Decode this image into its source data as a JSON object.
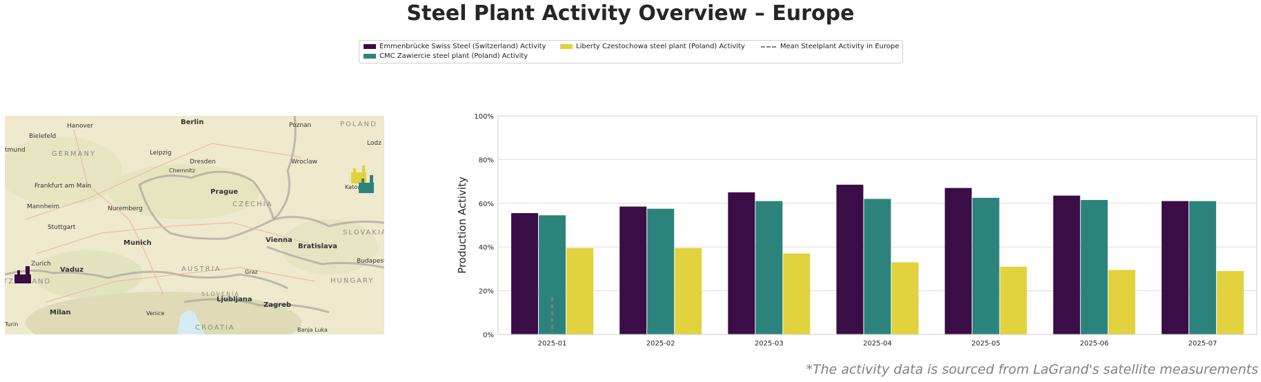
{
  "title": "Steel Plant Activity Overview – Europe",
  "footnote": "*The activity data is sourced from LaGrand's satellite measurements",
  "legend": {
    "items": [
      {
        "label": "Emmenbrücke Swiss Steel (Switzerland) Activity",
        "color": "#3b0d47"
      },
      {
        "label": "CMC Zawiercie steel plant (Poland) Activity",
        "color": "#2c837c"
      },
      {
        "label": "Liberty Czestochowa steel plant (Poland) Activity",
        "color": "#e1d23e"
      },
      {
        "label": "Mean Steelplant Activity in Europe",
        "color": "#7f7f7f"
      }
    ]
  },
  "map": {
    "cities": [
      "Berlin",
      "Poznan",
      "Hanover",
      "Bielefeld",
      "Dortmund",
      "Leipzig",
      "Dresden",
      "Wroclaw",
      "Lodz",
      "Chemnitz",
      "Frankfurt am Main",
      "Prague",
      "Katowice",
      "Mannheim",
      "Nuremberg",
      "Stuttgart",
      "Munich",
      "Vienna",
      "Bratislava",
      "Zurich",
      "Vaduz",
      "Graz",
      "Budapest",
      "Ljubljana",
      "Zagreb",
      "Milan",
      "Venice",
      "Turin",
      "Banja Luka"
    ],
    "countries": [
      "GERMANY",
      "POLAND",
      "CZECHIA",
      "SLOVAKIA",
      "AUSTRIA",
      "HUNGARY",
      "SLOVENIA",
      "CROATIA",
      "SWITZERLAND"
    ]
  },
  "chart_data": {
    "type": "bar",
    "categories": [
      "2025-01",
      "2025-02",
      "2025-03",
      "2025-04",
      "2025-05",
      "2025-06",
      "2025-07"
    ],
    "series": [
      {
        "name": "Emmenbrücke Swiss Steel (Switzerland) Activity",
        "values": [
          55.5,
          58.5,
          65,
          68.5,
          67,
          63.5,
          61
        ],
        "color": "#3b0d47"
      },
      {
        "name": "CMC Zawiercie steel plant (Poland) Activity",
        "values": [
          54.5,
          57.5,
          61,
          62,
          62.5,
          61.5,
          61
        ],
        "color": "#2c837c"
      },
      {
        "name": "Liberty Czestochowa steel plant (Poland) Activity",
        "values": [
          39.5,
          39.5,
          37,
          33,
          31,
          29.5,
          29
        ],
        "color": "#e1d23e"
      },
      {
        "name": "Mean Steelplant Activity in Europe",
        "type": "line",
        "values": [
          17,
          null,
          null,
          null,
          null,
          null,
          null
        ],
        "color": "#7f7f7f"
      }
    ],
    "ylabel": "Production Activity",
    "xlabel": "",
    "ylim": [
      0,
      100
    ],
    "yticks": [
      "0%",
      "20%",
      "40%",
      "60%",
      "80%",
      "100%"
    ],
    "grid": true
  }
}
